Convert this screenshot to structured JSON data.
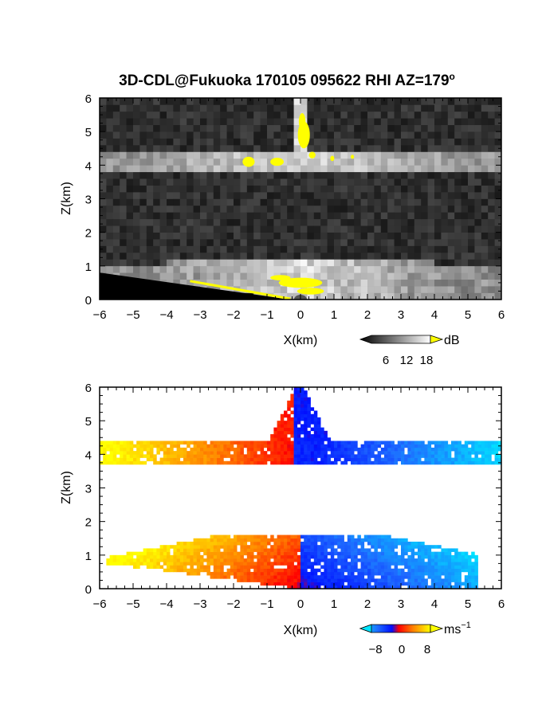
{
  "figure": {
    "title": "3D-CDL@Fukuoka 170105 095622 RHI AZ=179",
    "title_superscript": "o"
  },
  "chart_data": [
    {
      "type": "heatmap",
      "xlabel": "X(km)",
      "ylabel": "Z(km)",
      "xlim": [
        -6,
        6
      ],
      "ylim": [
        0,
        6
      ],
      "xticks": [
        "-6",
        "-5",
        "-4",
        "-3",
        "-2",
        "-1",
        "0",
        "1",
        "2",
        "3",
        "4",
        "5",
        "6"
      ],
      "yticks": [
        "0",
        "1",
        "2",
        "3",
        "4",
        "5",
        "6"
      ],
      "background": "noise",
      "colormap": "grayscale",
      "saturation_color": "#ffff00",
      "colorbar": {
        "unit": "dB",
        "ticks": [
          "6",
          "12",
          "18"
        ],
        "range": [
          0,
          20
        ]
      }
    },
    {
      "type": "heatmap",
      "xlabel": "X(km)",
      "ylabel": "Z(km)",
      "xlim": [
        -6,
        6
      ],
      "ylim": [
        0,
        6
      ],
      "xticks": [
        "-6",
        "-5",
        "-4",
        "-3",
        "-2",
        "-1",
        "0",
        "1",
        "2",
        "3",
        "4",
        "5",
        "6"
      ],
      "yticks": [
        "0",
        "1",
        "2",
        "3",
        "4",
        "5",
        "6"
      ],
      "background": "white",
      "colormap": "diverging blue-red-yellow",
      "colorbar": {
        "unit": "ms",
        "unit_superscript": "−1",
        "ticks": [
          "−8",
          "0",
          "8"
        ],
        "range": [
          -10,
          10
        ]
      }
    }
  ]
}
